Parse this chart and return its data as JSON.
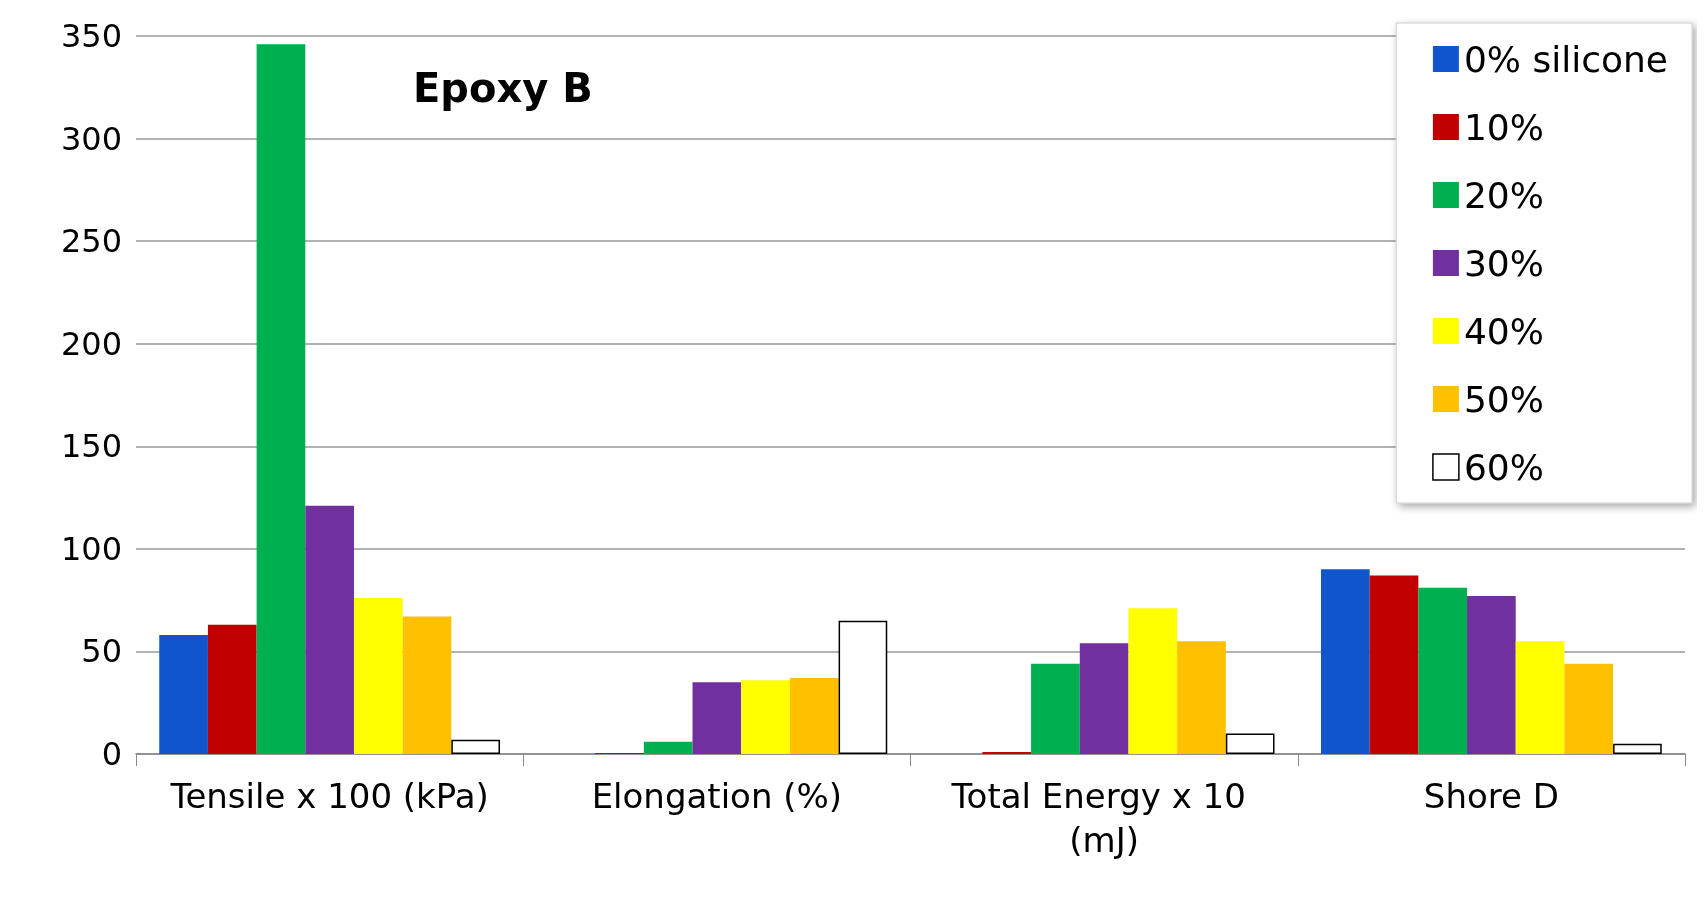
{
  "chart_data": {
    "type": "bar",
    "title": "Epoxy B",
    "categories": [
      "Tensile x 100 (kPa)",
      "Elongation (%)",
      "Total Energy x 10 (mJ)",
      "Shore D"
    ],
    "series": [
      {
        "name": "0% silicone",
        "color": "#1155cc",
        "values": [
          58,
          0,
          0,
          90
        ]
      },
      {
        "name": "10%",
        "color": "#c00000",
        "values": [
          63,
          0.5,
          1,
          87
        ]
      },
      {
        "name": "20%",
        "color": "#00b050",
        "values": [
          346,
          6,
          44,
          81
        ]
      },
      {
        "name": "30%",
        "color": "#7030a0",
        "values": [
          121,
          35,
          54,
          77
        ]
      },
      {
        "name": "40%",
        "color": "#ffff00",
        "values": [
          76,
          36,
          71,
          55
        ]
      },
      {
        "name": "50%",
        "color": "#ffc000",
        "values": [
          67,
          37,
          55,
          44
        ]
      },
      {
        "name": "60%",
        "color": "#ffffff",
        "values": [
          7,
          65,
          10,
          5
        ]
      }
    ],
    "ylim": [
      0,
      350
    ],
    "yticks": [
      0,
      50,
      100,
      150,
      200,
      250,
      300,
      350
    ],
    "grid": "y",
    "legend": "top right"
  }
}
